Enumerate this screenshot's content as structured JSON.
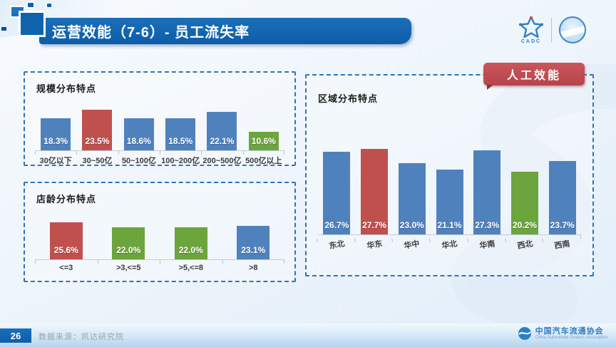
{
  "slide": {
    "title": "运营效能（7-6）- 员工流失率",
    "badge": "人工效能",
    "page_number": "26",
    "source": "数据来源：凯达研究院"
  },
  "logos": {
    "cadc_caption": "CADC",
    "association_name": "中国汽车流通协会",
    "association_name_en": "China Automobile Dealers Association"
  },
  "palette": {
    "blue": "#4F81BD",
    "red": "#C0504D",
    "green": "#6CA43D",
    "banner_blue": "#0E5CA8",
    "badge_red": "#BB474E",
    "dashed_border_blue": "#2E75B6"
  },
  "chart_data": [
    {
      "type": "bar",
      "title": "规模分布特点",
      "categories": [
        "30亿以下",
        "30~50亿",
        "50~100亿",
        "100~200亿",
        "200~500亿",
        "500亿以上"
      ],
      "values": [
        18.3,
        23.5,
        18.6,
        18.5,
        22.1,
        10.6
      ],
      "value_labels": [
        "18.3%",
        "23.5%",
        "18.6%",
        "18.5%",
        "22.1%",
        "10.6%"
      ],
      "bar_colors": [
        "blue",
        "red",
        "blue",
        "blue",
        "blue",
        "green"
      ],
      "xlabel": "",
      "ylabel": "",
      "ylim": [
        0,
        30
      ],
      "grid": false,
      "legend": false,
      "value_label_position": "inside-bottom"
    },
    {
      "type": "bar",
      "title": "店龄分布特点",
      "categories": [
        "<=3",
        ">3,<=5",
        ">5,<=8",
        ">8"
      ],
      "values": [
        25.6,
        22.0,
        22.0,
        23.1
      ],
      "value_labels": [
        "25.6%",
        "22.0%",
        "22.0%",
        "23.1%"
      ],
      "bar_colors": [
        "red",
        "green",
        "green",
        "blue"
      ],
      "xlabel": "",
      "ylabel": "",
      "ylim": [
        0,
        30
      ],
      "grid": false,
      "legend": false,
      "value_label_position": "inside-bottom"
    },
    {
      "type": "bar",
      "title": "区域分布特点",
      "categories": [
        "东北",
        "华东",
        "华中",
        "华北",
        "华南",
        "西北",
        "西南"
      ],
      "values": [
        26.7,
        27.7,
        23.0,
        21.1,
        27.3,
        20.2,
        23.7
      ],
      "value_labels": [
        "26.7%",
        "27.7%",
        "23.0%",
        "21.1%",
        "27.3%",
        "20.2%",
        "23.7%"
      ],
      "bar_colors": [
        "blue",
        "red",
        "blue",
        "blue",
        "blue",
        "green",
        "blue"
      ],
      "xlabel": "",
      "ylabel": "",
      "ylim": [
        0,
        30
      ],
      "grid": false,
      "legend": false,
      "value_label_position": "inside-bottom"
    }
  ]
}
